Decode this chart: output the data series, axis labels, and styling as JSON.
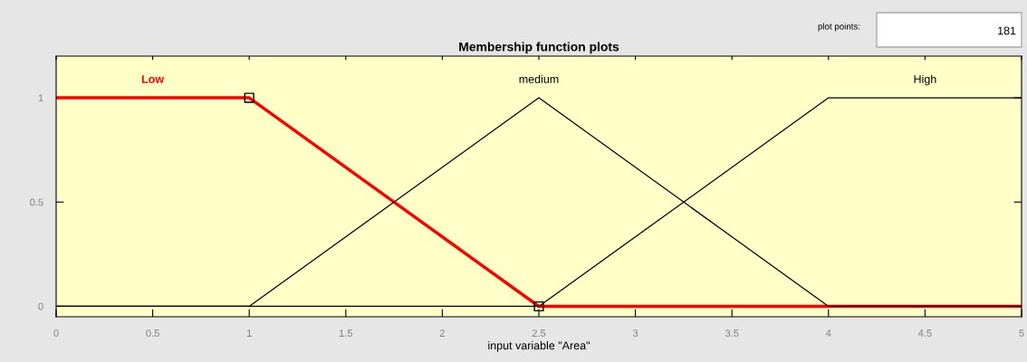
{
  "chart_data": {
    "type": "line",
    "title": "Membership function plots",
    "xlabel": "input variable \"Area\"",
    "series": [
      {
        "name": "Low",
        "color": "#ff0000",
        "x": [
          0,
          1,
          2.5,
          5
        ],
        "values": [
          1,
          1,
          0,
          0
        ]
      },
      {
        "name": "medium",
        "color": "#000000",
        "x": [
          0,
          1,
          2.5,
          4,
          5
        ],
        "values": [
          0,
          0,
          1,
          0,
          0
        ]
      },
      {
        "name": "High",
        "color": "#000000",
        "x": [
          0,
          2.5,
          4,
          5
        ],
        "values": [
          0,
          0,
          1,
          1
        ]
      },
      {
        "type": "scatter",
        "color": "#000000",
        "marker": "square",
        "x": [
          1,
          2.5
        ],
        "values": [
          1,
          0
        ]
      }
    ],
    "xlim": [
      0,
      5
    ],
    "xticks": [
      0,
      0.5,
      1,
      1.5,
      2,
      2.5,
      3,
      3.5,
      4,
      4.5,
      5
    ],
    "ylim": [
      -0.05,
      1.2
    ],
    "yticks": [
      0,
      0.5,
      1
    ],
    "grid": false,
    "legend": "top",
    "marker": "none",
    "annotations": [
      "plot points:",
      "181"
    ]
  }
}
